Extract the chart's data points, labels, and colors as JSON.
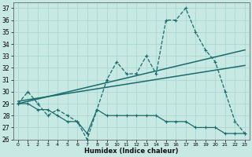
{
  "xlabel": "Humidex (Indice chaleur)",
  "xlim": [
    -0.5,
    23.5
  ],
  "ylim": [
    26,
    37.5
  ],
  "yticks": [
    26,
    27,
    28,
    29,
    30,
    31,
    32,
    33,
    34,
    35,
    36,
    37
  ],
  "xticks": [
    0,
    1,
    2,
    3,
    4,
    5,
    6,
    7,
    8,
    9,
    10,
    11,
    12,
    13,
    14,
    15,
    16,
    17,
    18,
    19,
    20,
    21,
    22,
    23
  ],
  "bg_color": "#c8e8e4",
  "grid_color": "#b0d8d4",
  "line_color": "#1a6b6b",
  "line1_x": [
    0,
    1,
    2,
    3,
    4,
    5,
    6,
    7,
    8,
    9,
    10,
    11,
    12,
    13,
    14,
    15,
    16,
    17,
    18,
    19,
    20,
    21,
    22,
    23
  ],
  "line1_y": [
    29,
    30,
    29,
    28,
    28.5,
    28,
    27.5,
    26,
    28.5,
    31,
    32.5,
    31.5,
    31.5,
    33,
    31.5,
    36,
    36,
    37,
    35,
    33.5,
    32.5,
    30,
    27.5,
    26.5
  ],
  "line2_x": [
    0,
    1,
    2,
    3,
    4,
    5,
    6,
    7,
    8,
    9,
    10,
    11,
    12,
    13,
    14,
    15,
    16,
    17,
    18,
    19,
    20,
    21,
    22,
    23
  ],
  "line2_y": [
    29,
    29,
    28.5,
    28.5,
    28,
    27.5,
    27.5,
    26.5,
    28.5,
    28,
    28,
    28,
    28,
    28,
    28,
    27.5,
    27.5,
    27.5,
    27,
    27,
    27,
    26.5,
    26.5,
    26.5
  ],
  "trend1_x": [
    0,
    23
  ],
  "trend1_y": [
    29.0,
    33.5
  ],
  "trend2_x": [
    0,
    23
  ],
  "trend2_y": [
    29.2,
    32.2
  ]
}
